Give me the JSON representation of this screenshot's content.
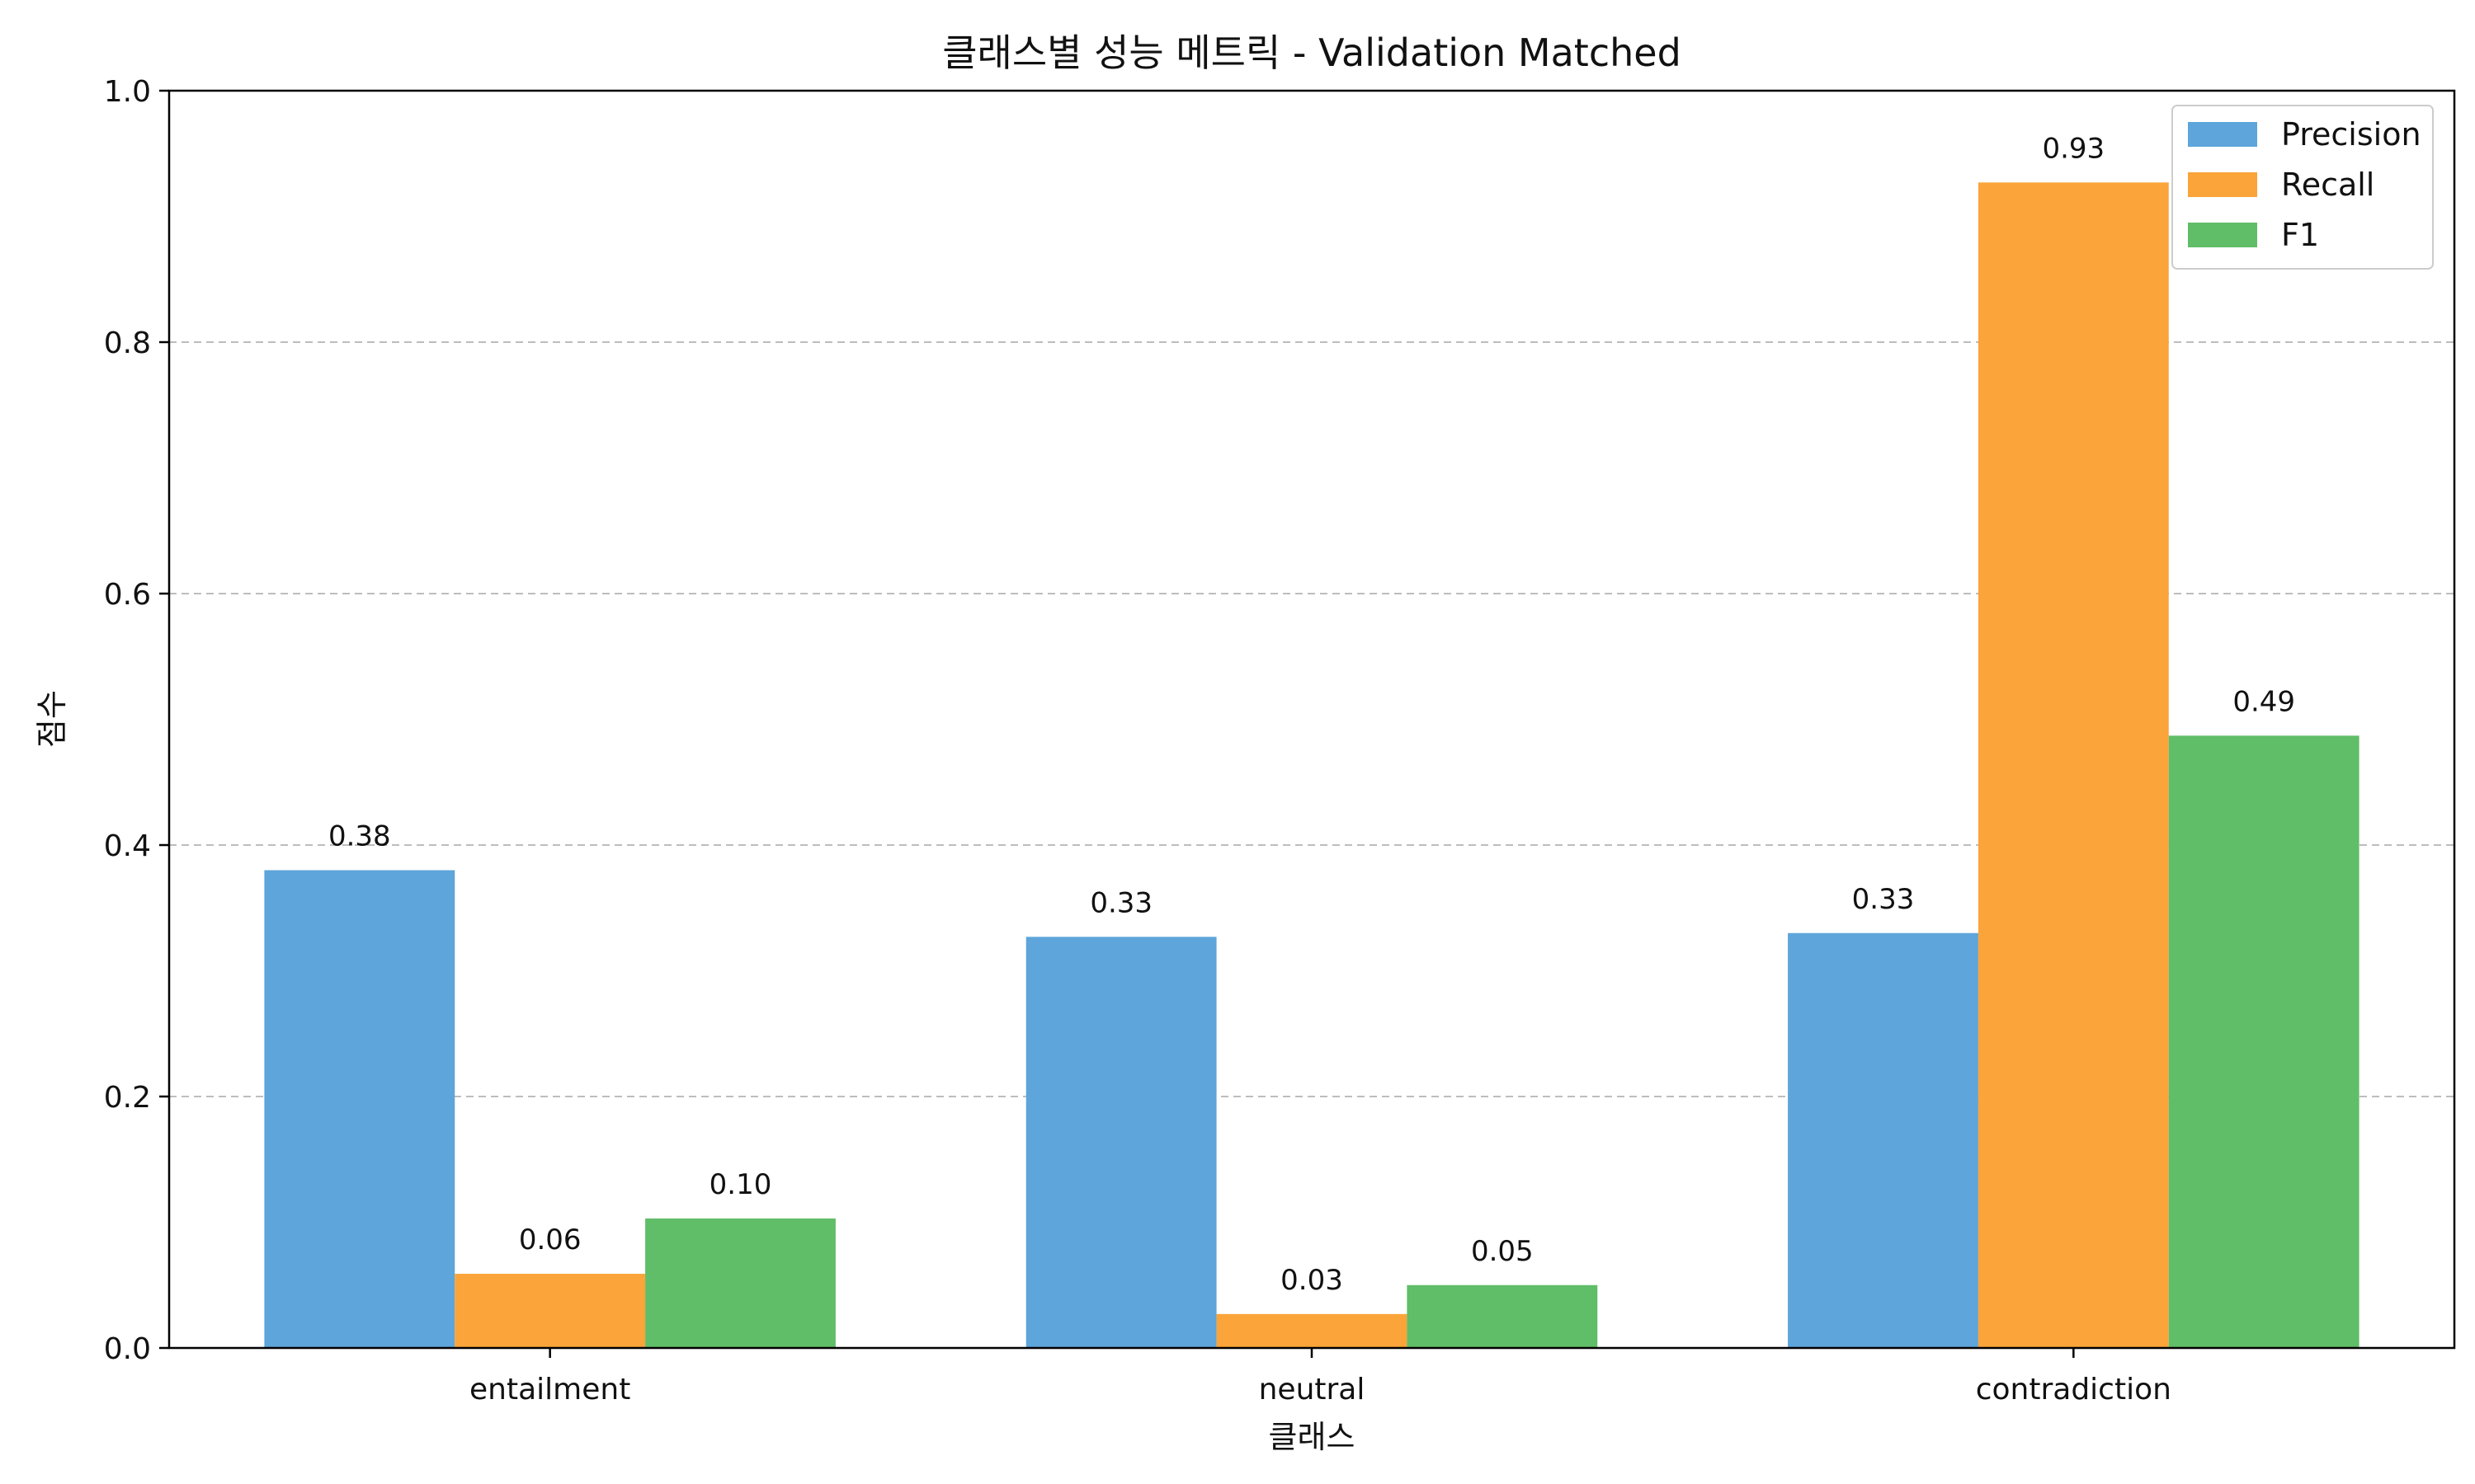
{
  "chart_data": {
    "type": "bar",
    "title": "클래스별 성능 메트릭 - Validation Matched",
    "xlabel": "클래스",
    "ylabel": "점수",
    "categories": [
      "entailment",
      "neutral",
      "contradiction"
    ],
    "series": [
      {
        "name": "Precision",
        "color": "#5da5da",
        "values": [
          0.38,
          0.327,
          0.33
        ],
        "labels": [
          "0.38",
          "0.33",
          "0.33"
        ]
      },
      {
        "name": "Recall",
        "color": "#faa43a",
        "values": [
          0.059,
          0.027,
          0.927
        ],
        "labels": [
          "0.06",
          "0.03",
          "0.93"
        ]
      },
      {
        "name": "F1",
        "color": "#60bd68",
        "values": [
          0.103,
          0.05,
          0.487
        ],
        "labels": [
          "0.10",
          "0.05",
          "0.49"
        ]
      }
    ],
    "ylim": [
      0,
      1.0
    ],
    "yticks": [
      0.0,
      0.2,
      0.4,
      0.6,
      0.8,
      1.0
    ],
    "ytick_labels": [
      "0.0",
      "0.2",
      "0.4",
      "0.6",
      "0.8",
      "1.0"
    ],
    "grid": "y-dashed",
    "legend_position": "top-right"
  }
}
